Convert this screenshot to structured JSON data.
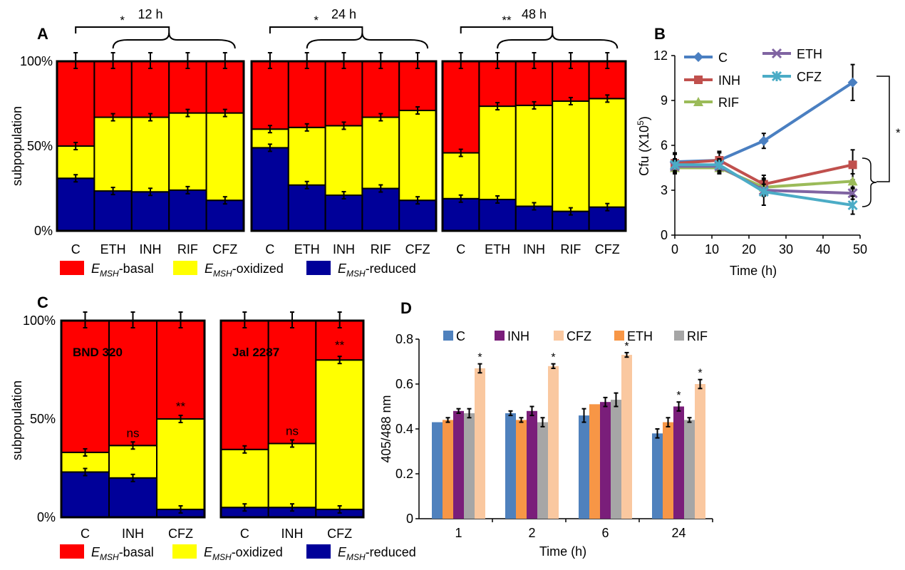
{
  "colors": {
    "basal": "#ff0000",
    "oxidized": "#ffff00",
    "reduced": "#000099",
    "line_C": "#4a7fc1",
    "line_INH": "#c0504d",
    "line_RIF": "#9bbb59",
    "line_ETH": "#8064a2",
    "line_CFZ": "#4bacc6",
    "bar_C": "#4f81bd",
    "bar_INH": "#7a1e7a",
    "bar_CFZ": "#fac8a0",
    "bar_ETH": "#f79646",
    "bar_RIF": "#a6a6a6"
  },
  "chart_data": [
    {
      "panel": "A",
      "type": "bar",
      "stacked": true,
      "ylabel": "subpopulation",
      "yticks": [
        "100%",
        "50%",
        "0%"
      ],
      "legend": [
        {
          "main": "E",
          "sub": "MSH",
          "suffix": "-basal",
          "key": "basal"
        },
        {
          "main": "E",
          "sub": "MSH",
          "suffix": "-oxidized",
          "key": "oxidized"
        },
        {
          "main": "E",
          "sub": "MSH",
          "suffix": "-reduced",
          "key": "reduced"
        }
      ],
      "groups": [
        {
          "title": "12 h",
          "significance": "*",
          "categories": [
            "C",
            "ETH",
            "INH",
            "RIF",
            "CFZ"
          ],
          "reduced": [
            31,
            23.5,
            23,
            24,
            18
          ],
          "oxidized": [
            19,
            43.5,
            44,
            45.5,
            51.5
          ],
          "basal": [
            50,
            33,
            33,
            30.5,
            30.5
          ]
        },
        {
          "title": "24 h",
          "significance": "*",
          "categories": [
            "C",
            "ETH",
            "INH",
            "RIF",
            "CFZ"
          ],
          "reduced": [
            49,
            27,
            21,
            25,
            18
          ],
          "oxidized": [
            11,
            34,
            41,
            42,
            53
          ],
          "basal": [
            40,
            39,
            38,
            33,
            29
          ]
        },
        {
          "title": "48 h",
          "significance": "**",
          "categories": [
            "C",
            "ETH",
            "INH",
            "RIF",
            "CFZ"
          ],
          "reduced": [
            19,
            18.5,
            14.5,
            11.5,
            14
          ],
          "oxidized": [
            27,
            55,
            59.5,
            65,
            64
          ],
          "basal": [
            54,
            26.5,
            26,
            23.5,
            22
          ]
        }
      ]
    },
    {
      "panel": "B",
      "type": "line",
      "xlabel": "Time (h)",
      "ylabel": "Cfu (X10",
      "ylabel_sup": "5",
      "ylabel_end": ")",
      "xlim": [
        0,
        50
      ],
      "ylim": [
        0,
        12
      ],
      "xticks": [
        0,
        10,
        20,
        30,
        40,
        50
      ],
      "yticks": [
        0,
        3,
        6,
        9,
        12
      ],
      "significance": "*",
      "series": [
        {
          "name": "C",
          "marker": "diamond",
          "x": [
            0,
            12,
            24,
            48
          ],
          "y": [
            4.9,
            5.0,
            6.3,
            10.2
          ],
          "err": [
            0.6,
            0.5,
            0.5,
            1.2
          ]
        },
        {
          "name": "INH",
          "marker": "square",
          "x": [
            0,
            12,
            24,
            48
          ],
          "y": [
            4.8,
            5.0,
            3.4,
            4.7
          ],
          "err": [
            0.6,
            0.6,
            0.6,
            1.0
          ]
        },
        {
          "name": "RIF",
          "marker": "triangle",
          "x": [
            0,
            12,
            24,
            48
          ],
          "y": [
            4.5,
            4.5,
            3.2,
            3.6
          ],
          "err": [
            0.4,
            0.4,
            0.5,
            0.5
          ]
        },
        {
          "name": "ETH",
          "marker": "x",
          "x": [
            0,
            12,
            24,
            48
          ],
          "y": [
            4.6,
            4.6,
            3.0,
            2.8
          ],
          "err": [
            0.4,
            0.4,
            0.4,
            0.4
          ]
        },
        {
          "name": "CFZ",
          "marker": "asterisk",
          "x": [
            0,
            12,
            24,
            48
          ],
          "y": [
            4.7,
            4.7,
            2.9,
            2.0
          ],
          "err": [
            0.4,
            0.4,
            0.9,
            0.6
          ]
        }
      ]
    },
    {
      "panel": "C",
      "type": "bar",
      "stacked": true,
      "ylabel": "subpopulation",
      "yticks": [
        "100%",
        "50%",
        "0%"
      ],
      "legend": [
        {
          "main": "E",
          "sub": "MSH",
          "suffix": "-basal",
          "key": "basal"
        },
        {
          "main": "E",
          "sub": "MSH",
          "suffix": "-oxidized",
          "key": "oxidized"
        },
        {
          "main": "E",
          "sub": "MSH",
          "suffix": "-reduced",
          "key": "reduced"
        }
      ],
      "groups": [
        {
          "title": "BND 320",
          "categories": [
            "C",
            "INH",
            "CFZ"
          ],
          "annotations": [
            "",
            "ns",
            "**"
          ],
          "reduced": [
            23,
            20,
            4
          ],
          "oxidized": [
            10,
            16.5,
            46
          ],
          "basal": [
            67,
            63.5,
            50
          ]
        },
        {
          "title": "Jal 2287",
          "categories": [
            "C",
            "INH",
            "CFZ"
          ],
          "annotations": [
            "",
            "ns",
            "**"
          ],
          "reduced": [
            5,
            5,
            4
          ],
          "oxidized": [
            29.5,
            32.5,
            76
          ],
          "basal": [
            65.5,
            62.5,
            20
          ]
        }
      ]
    },
    {
      "panel": "D",
      "type": "bar",
      "xlabel": "Time (h)",
      "ylabel": "405/488 nm",
      "ylim": [
        0,
        0.8
      ],
      "yticks": [
        "0",
        "0.2",
        "0.4",
        "0.6",
        "0.8"
      ],
      "categories": [
        "1",
        "2",
        "6",
        "24"
      ],
      "legend_order": [
        "C",
        "INH",
        "CFZ",
        "ETH",
        "RIF"
      ],
      "series": [
        {
          "name": "C",
          "values": [
            0.43,
            0.47,
            0.46,
            0.38
          ],
          "err": [
            0,
            0.01,
            0.03,
            0.02
          ],
          "sig": [
            "",
            "",
            "",
            ""
          ]
        },
        {
          "name": "ETH",
          "values": [
            0.44,
            0.44,
            0.51,
            0.43
          ],
          "err": [
            0.01,
            0.01,
            0,
            0.02
          ],
          "sig": [
            "",
            "",
            "",
            ""
          ]
        },
        {
          "name": "INH",
          "values": [
            0.48,
            0.48,
            0.52,
            0.5
          ],
          "err": [
            0.01,
            0.02,
            0.02,
            0.02
          ],
          "sig": [
            "",
            "",
            "",
            "*"
          ]
        },
        {
          "name": "RIF",
          "values": [
            0.47,
            0.43,
            0.53,
            0.44
          ],
          "err": [
            0.02,
            0.02,
            0.03,
            0.01
          ],
          "sig": [
            "",
            "",
            "",
            ""
          ]
        },
        {
          "name": "CFZ",
          "values": [
            0.67,
            0.68,
            0.73,
            0.6
          ],
          "err": [
            0.02,
            0.01,
            0.01,
            0.02
          ],
          "sig": [
            "*",
            "*",
            "*",
            "*"
          ]
        }
      ]
    }
  ],
  "panel_labels": {
    "A": "A",
    "B": "B",
    "C": "C",
    "D": "D"
  }
}
